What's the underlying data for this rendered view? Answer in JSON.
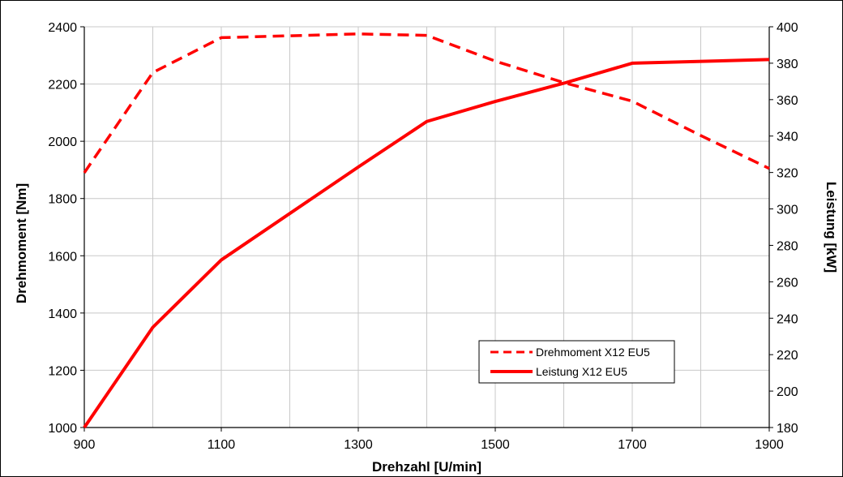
{
  "colors": {
    "series": "#ff0000",
    "grid": "#c8c8c8",
    "axis": "#000000",
    "background": "#ffffff"
  },
  "chart_data": {
    "type": "line",
    "grid": true,
    "legend_placement": "lower-right inside plot",
    "x_axis": {
      "label": "Drehzahl [U/min]",
      "range": [
        900,
        1900
      ],
      "ticks": [
        900,
        1100,
        1300,
        1500,
        1700,
        1900
      ],
      "minor_gridlines": [
        1000,
        1200,
        1400,
        1600,
        1800
      ]
    },
    "y_axis_left": {
      "label": "Drehmoment [Nm]",
      "range": [
        1000,
        2400
      ],
      "ticks": [
        1000,
        1200,
        1400,
        1600,
        1800,
        2000,
        2200,
        2400
      ]
    },
    "y_axis_right": {
      "label": "Leistung [kW]",
      "range": [
        180,
        400
      ],
      "ticks": [
        180,
        200,
        220,
        240,
        260,
        280,
        300,
        320,
        340,
        360,
        380,
        400
      ]
    },
    "series": [
      {
        "name": "Drehmoment X12 EU5",
        "axis": "left",
        "style": "dashed",
        "x": [
          900,
          1000,
          1100,
          1300,
          1400,
          1500,
          1600,
          1700,
          1800,
          1900
        ],
        "values": [
          1890,
          2240,
          2362,
          2375,
          2370,
          2280,
          2205,
          2140,
          2020,
          1905
        ]
      },
      {
        "name": "Leistung X12 EU5",
        "axis": "right",
        "style": "solid",
        "x": [
          900,
          1000,
          1100,
          1300,
          1400,
          1500,
          1600,
          1700,
          1900
        ],
        "values": [
          180,
          235,
          272,
          323,
          348,
          359,
          369,
          380,
          382
        ]
      }
    ]
  }
}
